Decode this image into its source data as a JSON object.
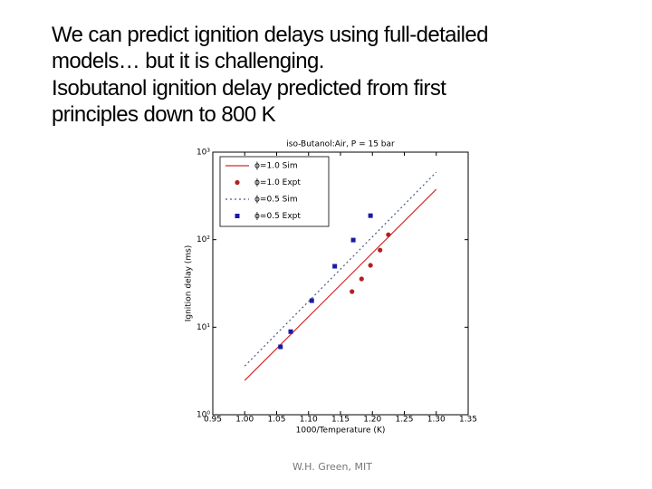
{
  "slide": {
    "title": [
      "We can predict ignition delays using full-detailed",
      "models… but it is challenging.",
      "Isobutanol ignition delay predicted from first",
      "principles down to 800 K"
    ],
    "footer": "W.H. Green, MIT"
  },
  "chart_data": {
    "type": "line",
    "title": "iso-Butanol:Air, P = 15 bar",
    "x_label": "1000/Temperature (K)",
    "y_label": "Ignition delay (ms)",
    "xlim": [
      0.95,
      1.35
    ],
    "xticks": [
      0.95,
      {
        "value": 1,
        "label": "1.00"
      },
      1.05,
      {
        "value": 1.1,
        "label": "1.10"
      },
      1.15,
      {
        "value": 1.2,
        "label": "1.20"
      },
      1.25,
      {
        "value": 1.3,
        "label": "1.30"
      },
      1.35
    ],
    "ylim": [
      1,
      1000
    ],
    "ylog": true,
    "yticks": [
      {
        "value": 1,
        "label": "10⁰"
      },
      {
        "value": 10,
        "label": "10¹"
      },
      {
        "value": 100,
        "label": "10²"
      },
      {
        "value": 1000,
        "label": "10³"
      }
    ],
    "legend": "upper left",
    "series": [
      {
        "name": "ϕ=1.0 Sim",
        "color": "#d42a2a",
        "mode": "line",
        "dash": false,
        "x": [
          1.0,
          1.3
        ],
        "values": [
          2.47,
          376
        ]
      },
      {
        "name": "ϕ=1.0 Expt",
        "color": "#b22020",
        "mode": "scatter",
        "marker": "circle",
        "x": [
          1.168,
          1.183,
          1.197,
          1.212,
          1.225
        ],
        "values": [
          25.5,
          35.6,
          50.9,
          76,
          114
        ]
      },
      {
        "name": "ϕ=0.5 Sim",
        "color": "#4a5a80",
        "mode": "line",
        "dash": true,
        "x": [
          1.0,
          1.3
        ],
        "values": [
          3.6,
          590
        ]
      },
      {
        "name": "ϕ=0.5 Expt",
        "color": "#1a1aa8",
        "mode": "scatter",
        "marker": "square",
        "x": [
          1.056,
          1.072,
          1.105,
          1.141,
          1.17,
          1.197
        ],
        "values": [
          5.97,
          8.9,
          20.1,
          49.7,
          99,
          188
        ]
      }
    ]
  }
}
